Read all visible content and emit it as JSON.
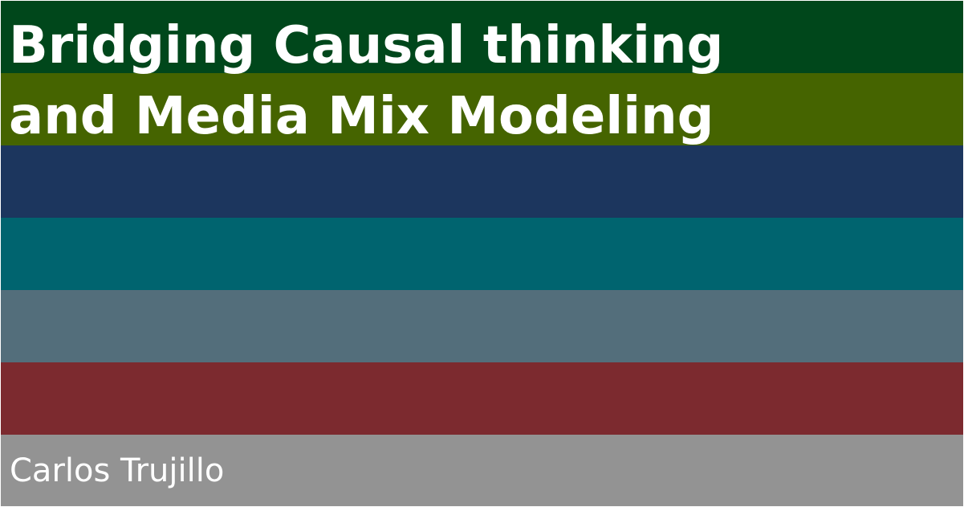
{
  "title_lines": [
    "Bridging Causal thinking",
    "and Media Mix Modeling"
  ],
  "author": "Carlos Trujillo",
  "bands": [
    {
      "color": "#00471b"
    },
    {
      "color": "#456400"
    },
    {
      "color": "#1c365e"
    },
    {
      "color": "#00646f"
    },
    {
      "color": "#536e7b"
    },
    {
      "color": "#7c2a2f"
    },
    {
      "color": "#939393"
    }
  ]
}
